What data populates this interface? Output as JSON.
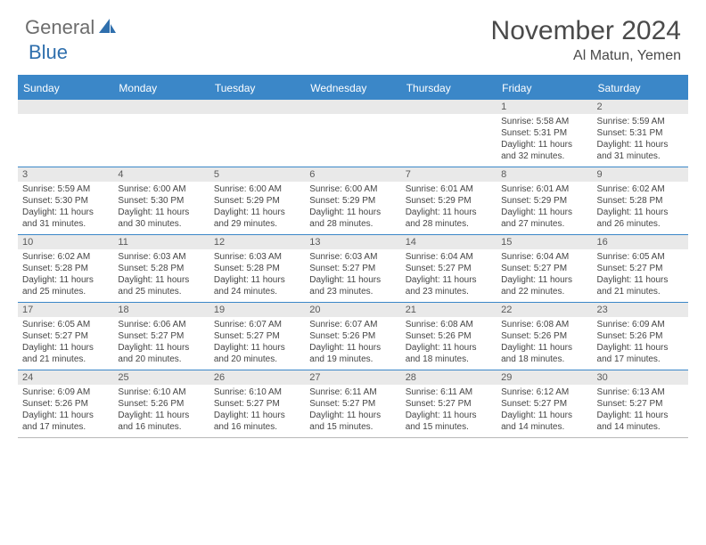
{
  "brand": {
    "part1": "General",
    "part2": "Blue"
  },
  "title": "November 2024",
  "location": "Al Matun, Yemen",
  "colors": {
    "accent": "#3b87c8",
    "header_text": "#ffffff",
    "body_bg": "#ffffff",
    "stripe_bg": "#e9e9e9",
    "text_dark": "#4a4a4a",
    "text_cell": "#454545",
    "logo_gray": "#6d6d6d",
    "logo_blue": "#2f6fad"
  },
  "day_headers": [
    "Sunday",
    "Monday",
    "Tuesday",
    "Wednesday",
    "Thursday",
    "Friday",
    "Saturday"
  ],
  "weeks": [
    [
      {
        "num": "",
        "lines": []
      },
      {
        "num": "",
        "lines": []
      },
      {
        "num": "",
        "lines": []
      },
      {
        "num": "",
        "lines": []
      },
      {
        "num": "",
        "lines": []
      },
      {
        "num": "1",
        "lines": [
          "Sunrise: 5:58 AM",
          "Sunset: 5:31 PM",
          "Daylight: 11 hours and 32 minutes."
        ]
      },
      {
        "num": "2",
        "lines": [
          "Sunrise: 5:59 AM",
          "Sunset: 5:31 PM",
          "Daylight: 11 hours and 31 minutes."
        ]
      }
    ],
    [
      {
        "num": "3",
        "lines": [
          "Sunrise: 5:59 AM",
          "Sunset: 5:30 PM",
          "Daylight: 11 hours and 31 minutes."
        ]
      },
      {
        "num": "4",
        "lines": [
          "Sunrise: 6:00 AM",
          "Sunset: 5:30 PM",
          "Daylight: 11 hours and 30 minutes."
        ]
      },
      {
        "num": "5",
        "lines": [
          "Sunrise: 6:00 AM",
          "Sunset: 5:29 PM",
          "Daylight: 11 hours and 29 minutes."
        ]
      },
      {
        "num": "6",
        "lines": [
          "Sunrise: 6:00 AM",
          "Sunset: 5:29 PM",
          "Daylight: 11 hours and 28 minutes."
        ]
      },
      {
        "num": "7",
        "lines": [
          "Sunrise: 6:01 AM",
          "Sunset: 5:29 PM",
          "Daylight: 11 hours and 28 minutes."
        ]
      },
      {
        "num": "8",
        "lines": [
          "Sunrise: 6:01 AM",
          "Sunset: 5:29 PM",
          "Daylight: 11 hours and 27 minutes."
        ]
      },
      {
        "num": "9",
        "lines": [
          "Sunrise: 6:02 AM",
          "Sunset: 5:28 PM",
          "Daylight: 11 hours and 26 minutes."
        ]
      }
    ],
    [
      {
        "num": "10",
        "lines": [
          "Sunrise: 6:02 AM",
          "Sunset: 5:28 PM",
          "Daylight: 11 hours and 25 minutes."
        ]
      },
      {
        "num": "11",
        "lines": [
          "Sunrise: 6:03 AM",
          "Sunset: 5:28 PM",
          "Daylight: 11 hours and 25 minutes."
        ]
      },
      {
        "num": "12",
        "lines": [
          "Sunrise: 6:03 AM",
          "Sunset: 5:28 PM",
          "Daylight: 11 hours and 24 minutes."
        ]
      },
      {
        "num": "13",
        "lines": [
          "Sunrise: 6:03 AM",
          "Sunset: 5:27 PM",
          "Daylight: 11 hours and 23 minutes."
        ]
      },
      {
        "num": "14",
        "lines": [
          "Sunrise: 6:04 AM",
          "Sunset: 5:27 PM",
          "Daylight: 11 hours and 23 minutes."
        ]
      },
      {
        "num": "15",
        "lines": [
          "Sunrise: 6:04 AM",
          "Sunset: 5:27 PM",
          "Daylight: 11 hours and 22 minutes."
        ]
      },
      {
        "num": "16",
        "lines": [
          "Sunrise: 6:05 AM",
          "Sunset: 5:27 PM",
          "Daylight: 11 hours and 21 minutes."
        ]
      }
    ],
    [
      {
        "num": "17",
        "lines": [
          "Sunrise: 6:05 AM",
          "Sunset: 5:27 PM",
          "Daylight: 11 hours and 21 minutes."
        ]
      },
      {
        "num": "18",
        "lines": [
          "Sunrise: 6:06 AM",
          "Sunset: 5:27 PM",
          "Daylight: 11 hours and 20 minutes."
        ]
      },
      {
        "num": "19",
        "lines": [
          "Sunrise: 6:07 AM",
          "Sunset: 5:27 PM",
          "Daylight: 11 hours and 20 minutes."
        ]
      },
      {
        "num": "20",
        "lines": [
          "Sunrise: 6:07 AM",
          "Sunset: 5:26 PM",
          "Daylight: 11 hours and 19 minutes."
        ]
      },
      {
        "num": "21",
        "lines": [
          "Sunrise: 6:08 AM",
          "Sunset: 5:26 PM",
          "Daylight: 11 hours and 18 minutes."
        ]
      },
      {
        "num": "22",
        "lines": [
          "Sunrise: 6:08 AM",
          "Sunset: 5:26 PM",
          "Daylight: 11 hours and 18 minutes."
        ]
      },
      {
        "num": "23",
        "lines": [
          "Sunrise: 6:09 AM",
          "Sunset: 5:26 PM",
          "Daylight: 11 hours and 17 minutes."
        ]
      }
    ],
    [
      {
        "num": "24",
        "lines": [
          "Sunrise: 6:09 AM",
          "Sunset: 5:26 PM",
          "Daylight: 11 hours and 17 minutes."
        ]
      },
      {
        "num": "25",
        "lines": [
          "Sunrise: 6:10 AM",
          "Sunset: 5:26 PM",
          "Daylight: 11 hours and 16 minutes."
        ]
      },
      {
        "num": "26",
        "lines": [
          "Sunrise: 6:10 AM",
          "Sunset: 5:27 PM",
          "Daylight: 11 hours and 16 minutes."
        ]
      },
      {
        "num": "27",
        "lines": [
          "Sunrise: 6:11 AM",
          "Sunset: 5:27 PM",
          "Daylight: 11 hours and 15 minutes."
        ]
      },
      {
        "num": "28",
        "lines": [
          "Sunrise: 6:11 AM",
          "Sunset: 5:27 PM",
          "Daylight: 11 hours and 15 minutes."
        ]
      },
      {
        "num": "29",
        "lines": [
          "Sunrise: 6:12 AM",
          "Sunset: 5:27 PM",
          "Daylight: 11 hours and 14 minutes."
        ]
      },
      {
        "num": "30",
        "lines": [
          "Sunrise: 6:13 AM",
          "Sunset: 5:27 PM",
          "Daylight: 11 hours and 14 minutes."
        ]
      }
    ]
  ]
}
